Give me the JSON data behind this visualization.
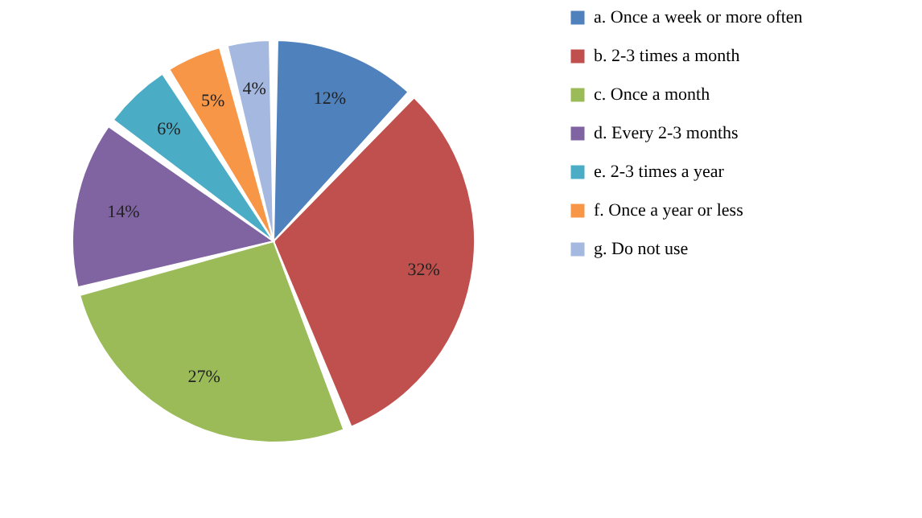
{
  "chart_data": {
    "type": "pie",
    "categories": [
      "a.     Once a week or more often",
      "b.     2-3 times a month",
      "c.      Once a month",
      "d.     Every 2-3 months",
      "e.      2-3 times a year",
      "f.      Once a year or less",
      "g.     Do not use"
    ],
    "values": [
      12,
      32,
      27,
      14,
      6,
      5,
      4
    ],
    "value_labels": [
      "12%",
      "32%",
      "27%",
      "14%",
      "6%",
      "5%",
      "4%"
    ],
    "colors": [
      "#4f81bd",
      "#c0504d",
      "#9bbb59",
      "#8064a2",
      "#4bacc6",
      "#f79646",
      "#a5b8e0"
    ],
    "legend": "right"
  }
}
